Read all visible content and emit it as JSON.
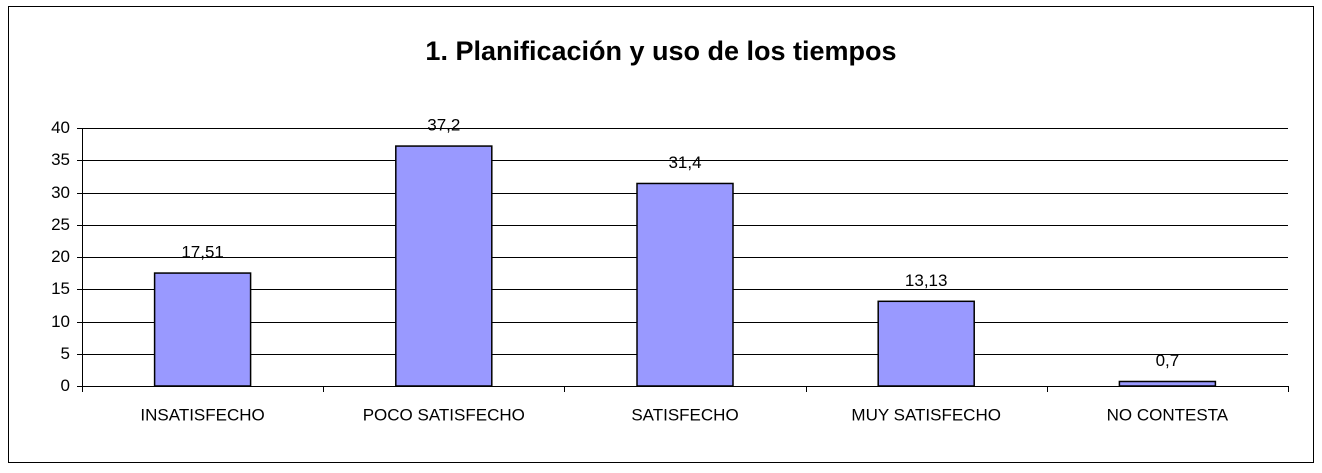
{
  "chart_data": {
    "type": "bar",
    "title": "1. Planificación y uso de los tiempos",
    "categories": [
      "INSATISFECHO",
      "POCO SATISFECHO",
      "SATISFECHO",
      "MUY SATISFECHO",
      "NO CONTESTA"
    ],
    "values": [
      17.51,
      37.2,
      31.4,
      13.13,
      0.7
    ],
    "value_labels": [
      "17,51",
      "37,2",
      "31,4",
      "13,13",
      "0,7"
    ],
    "color": "#9999ff",
    "ylim": [
      0,
      40
    ],
    "yticks": [
      0,
      5,
      10,
      15,
      20,
      25,
      30,
      35,
      40
    ],
    "grid": true
  }
}
